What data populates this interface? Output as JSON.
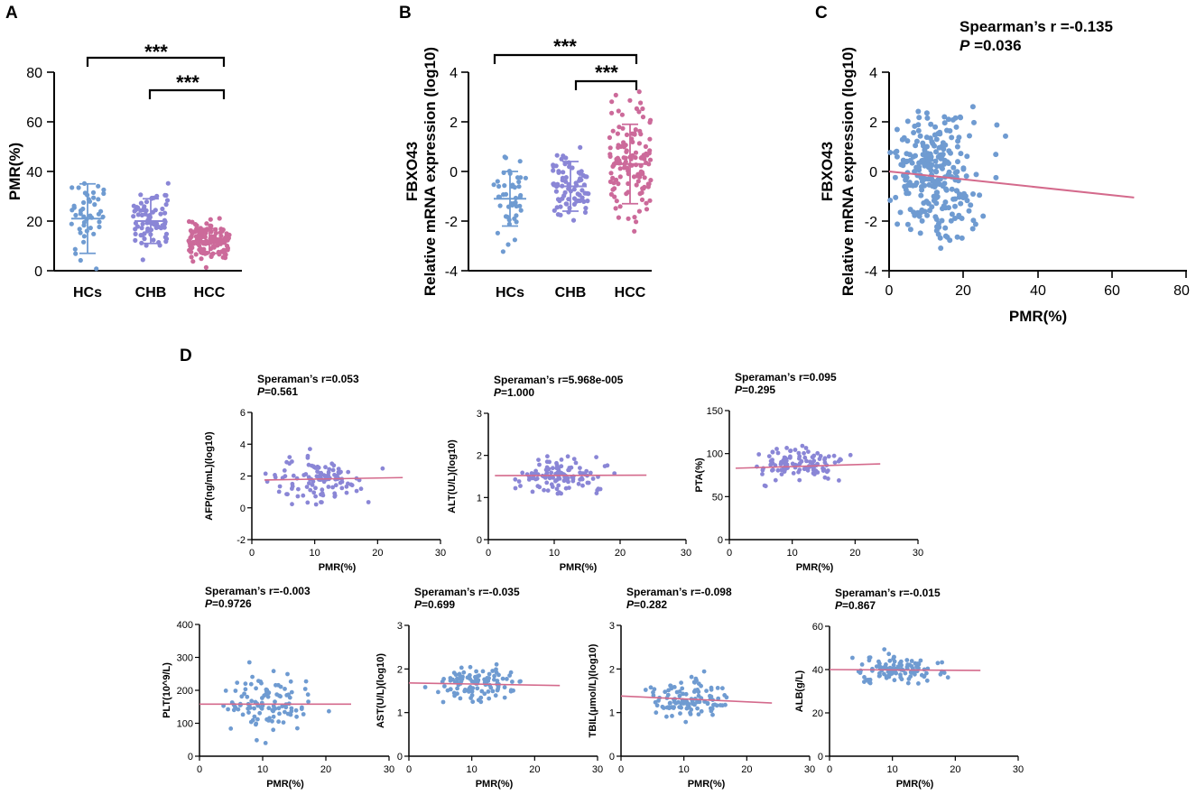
{
  "colors": {
    "blue": "#6f9bd1",
    "purple": "#8a86d6",
    "pink": "#cc6a9a",
    "regline": "#d46a8c",
    "axis": "#000000"
  },
  "panel_labels": [
    "A",
    "B",
    "C",
    "D"
  ],
  "chart_data": [
    {
      "id": "A",
      "type": "scatter",
      "title": "",
      "xlabel": "",
      "ylabel": "PMR(%)",
      "categories": [
        "HCs",
        "CHB",
        "HCC"
      ],
      "ylim": [
        0,
        80
      ],
      "yticks": [
        "0",
        "20",
        "40",
        "60",
        "80"
      ],
      "summary": [
        {
          "group": "HCs",
          "mean": 21,
          "sd_low": 7,
          "sd_high": 35
        },
        {
          "group": "CHB",
          "mean": 20,
          "sd_low": 11,
          "sd_high": 29
        },
        {
          "group": "HCC",
          "mean": 12,
          "sd_low": 7,
          "sd_high": 17
        }
      ],
      "significance": [
        {
          "from": "HCs",
          "to": "HCC",
          "label": "***"
        },
        {
          "from": "CHB",
          "to": "HCC",
          "label": "***"
        }
      ]
    },
    {
      "id": "B",
      "type": "scatter",
      "xlabel": "",
      "ylabel": "Relative  mRNA  expression (log10)",
      "ylabel_line1": "FBXO43",
      "ylabel_line2": "Relative  mRNA  expression (log10)",
      "categories": [
        "HCs",
        "CHB",
        "HCC"
      ],
      "ylim": [
        -4,
        4
      ],
      "yticks": [
        "-4",
        "-2",
        "0",
        "2",
        "4"
      ],
      "summary": [
        {
          "group": "HCs",
          "mean": -1.1,
          "sd_low": -2.2,
          "sd_high": 0.0
        },
        {
          "group": "CHB",
          "mean": -0.6,
          "sd_low": -1.6,
          "sd_high": 0.4
        },
        {
          "group": "HCC",
          "mean": 0.3,
          "sd_low": -1.3,
          "sd_high": 1.9
        }
      ],
      "significance": [
        {
          "from": "HCs",
          "to": "HCC",
          "label": "***"
        },
        {
          "from": "CHB",
          "to": "HCC",
          "label": "***"
        }
      ]
    },
    {
      "id": "C",
      "type": "scatter",
      "xlabel": "PMR(%)",
      "ylabel_line1": "FBXO43",
      "ylabel_line2": "Relative  mRNA  expression (log10)",
      "xlim": [
        0,
        80
      ],
      "ylim": [
        -4,
        4
      ],
      "xticks": [
        "0",
        "20",
        "40",
        "60",
        "80"
      ],
      "yticks": [
        "-4",
        "-2",
        "0",
        "2",
        "4"
      ],
      "annotation_r": "Spearman’s r =-0.135",
      "annotation_p_italic": "P",
      "annotation_p_value": " =0.036",
      "regression": {
        "x0": 0,
        "y0": 0.0,
        "x1": 66,
        "y1": -1.05
      }
    },
    {
      "id": "D-AFP",
      "type": "scatter",
      "xlabel": "PMR(%)",
      "ylabel": "AFP(ng/mL)(log10)",
      "xlim": [
        0,
        30
      ],
      "ylim": [
        -2,
        6
      ],
      "xticks": [
        "0",
        "10",
        "20",
        "30"
      ],
      "yticks": [
        "-2",
        "0",
        "2",
        "4",
        "6"
      ],
      "annotation_r": "Speraman’s r=0.053",
      "annotation_p_italic": "P",
      "annotation_p_value": "=0.561",
      "regression": {
        "x0": 2,
        "y0": 1.75,
        "x1": 24,
        "y1": 1.9
      },
      "center": 1.7,
      "spread": 1.3
    },
    {
      "id": "D-ALT",
      "type": "scatter",
      "xlabel": "PMR(%)",
      "ylabel": "ALT(U/L)(log10)",
      "xlim": [
        0,
        30
      ],
      "ylim": [
        0,
        3
      ],
      "xticks": [
        "0",
        "10",
        "20",
        "30"
      ],
      "yticks": [
        "0",
        "1",
        "2",
        "3"
      ],
      "annotation_r": "Speraman’s r=5.968e-005",
      "annotation_p_italic": "P",
      "annotation_p_value": "=1.000",
      "regression": {
        "x0": 1,
        "y0": 1.52,
        "x1": 24,
        "y1": 1.53
      },
      "center": 1.55,
      "spread": 0.35
    },
    {
      "id": "D-PTA",
      "type": "scatter",
      "xlabel": "PMR(%)",
      "ylabel": "PTA(%)",
      "xlim": [
        0,
        30
      ],
      "ylim": [
        0,
        150
      ],
      "xticks": [
        "0",
        "10",
        "20",
        "30"
      ],
      "yticks": [
        "0",
        "50",
        "100",
        "150"
      ],
      "annotation_r": "Speraman’s r=0.095",
      "annotation_p_italic": "P",
      "annotation_p_value": "=0.295",
      "regression": {
        "x0": 1,
        "y0": 83,
        "x1": 24,
        "y1": 88
      },
      "center": 87,
      "spread": 17
    },
    {
      "id": "D-PLT",
      "type": "scatter",
      "xlabel": "PMR(%)",
      "ylabel": "PLT(10^9/L)",
      "xlim": [
        0,
        30
      ],
      "ylim": [
        0,
        400
      ],
      "xticks": [
        "0",
        "10",
        "20",
        "30"
      ],
      "yticks": [
        "0",
        "100",
        "200",
        "300",
        "400"
      ],
      "annotation_r": "Speraman’s r=-0.003",
      "annotation_p_italic": "P",
      "annotation_p_value": "=0.9726",
      "regression": {
        "x0": 0,
        "y0": 158,
        "x1": 24,
        "y1": 158
      },
      "center": 160,
      "spread": 75
    },
    {
      "id": "D-AST",
      "type": "scatter",
      "xlabel": "PMR(%)",
      "ylabel": "AST(U/L)(log10)",
      "xlim": [
        0,
        30
      ],
      "ylim": [
        0,
        3
      ],
      "xticks": [
        "0",
        "10",
        "20",
        "30"
      ],
      "yticks": [
        "0",
        "1",
        "2",
        "3"
      ],
      "annotation_r": "Speraman’s r=-0.035",
      "annotation_p_italic": "P",
      "annotation_p_value": "=0.699",
      "regression": {
        "x0": 0,
        "y0": 1.68,
        "x1": 24,
        "y1": 1.62
      },
      "center": 1.65,
      "spread": 0.35
    },
    {
      "id": "D-TBIL",
      "type": "scatter",
      "xlabel": "PMR(%)",
      "ylabel": "TBIL(μmol/L)(log10)",
      "xlim": [
        0,
        30
      ],
      "ylim": [
        0,
        3
      ],
      "xticks": [
        "0",
        "10",
        "20",
        "30"
      ],
      "yticks": [
        "0",
        "1",
        "2",
        "3"
      ],
      "annotation_r": "Speraman’s r=-0.098",
      "annotation_p_italic": "P",
      "annotation_p_value": "=0.282",
      "regression": {
        "x0": 0,
        "y0": 1.38,
        "x1": 24,
        "y1": 1.22
      },
      "center": 1.3,
      "spread": 0.4
    },
    {
      "id": "D-ALB",
      "type": "scatter",
      "xlabel": "PMR(%)",
      "ylabel": "ALB(g/L)",
      "xlim": [
        0,
        30
      ],
      "ylim": [
        0,
        60
      ],
      "xticks": [
        "0",
        "10",
        "20",
        "30"
      ],
      "yticks": [
        "0",
        "20",
        "40",
        "60"
      ],
      "annotation_r": "Speraman’s r=-0.015",
      "annotation_p_italic": "P",
      "annotation_p_value": "=0.867",
      "regression": {
        "x0": 0,
        "y0": 40,
        "x1": 24,
        "y1": 39.6
      },
      "center": 40,
      "spread": 6
    }
  ]
}
